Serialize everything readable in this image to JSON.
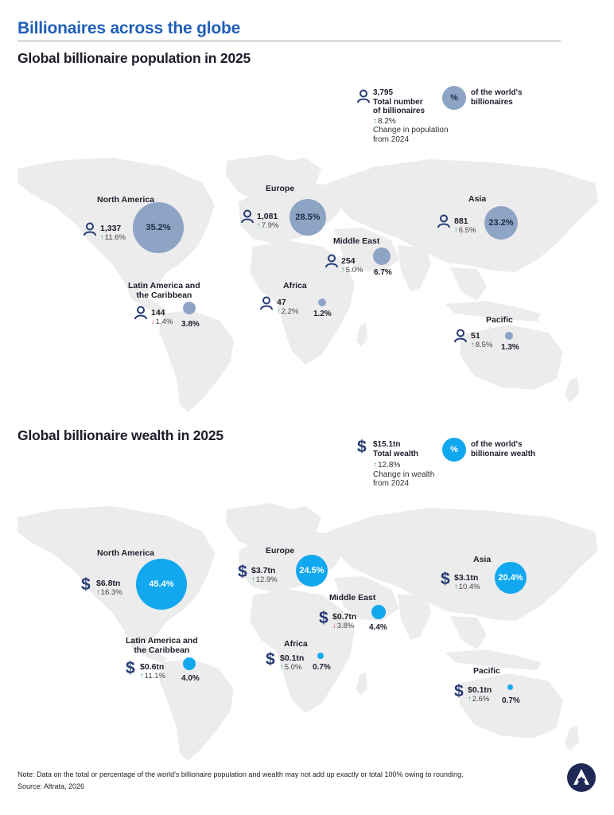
{
  "header": {
    "title": "Billionaires across the globe"
  },
  "population": {
    "title": "Global billionaire population in 2025",
    "legend": {
      "total_value": "3,795",
      "total_label_1": "Total number",
      "total_label_2": "of billionaires",
      "change": "8.2%",
      "change_dir": "up",
      "change_label_1": "Change in population",
      "change_label_2": "from 2024",
      "pct_symbol": "%",
      "pct_label_1": "of the world's",
      "pct_label_2": "billionaires"
    },
    "regions": [
      {
        "name_1": "North America",
        "name_2": "",
        "value": "1,337",
        "change": "11.6%",
        "dir": "up",
        "share": "35.2%"
      },
      {
        "name_1": "Europe",
        "name_2": "",
        "value": "1,081",
        "change": "7.9%",
        "dir": "up",
        "share": "28.5%"
      },
      {
        "name_1": "Asia",
        "name_2": "",
        "value": "881",
        "change": "6.5%",
        "dir": "up",
        "share": "23.2%"
      },
      {
        "name_1": "Middle East",
        "name_2": "",
        "value": "254",
        "change": "5.0%",
        "dir": "up",
        "share": "6.7%"
      },
      {
        "name_1": "Latin America and",
        "name_2": "the Caribbean",
        "value": "144",
        "change": "1.4%",
        "dir": "down",
        "share": "3.8%"
      },
      {
        "name_1": "Africa",
        "name_2": "",
        "value": "47",
        "change": "2.2%",
        "dir": "up",
        "share": "1.2%"
      },
      {
        "name_1": "Pacific",
        "name_2": "",
        "value": "51",
        "change": "8.5%",
        "dir": "up",
        "share": "1.3%"
      }
    ]
  },
  "wealth": {
    "title": "Global billionaire wealth in 2025",
    "legend": {
      "total_value": "$15.1tn",
      "total_label_1": "Total wealth",
      "change": "12.8%",
      "change_dir": "up",
      "change_label_1": "Change in wealth",
      "change_label_2": "from 2024",
      "pct_symbol": "%",
      "pct_label_1": "of the world's",
      "pct_label_2": "billionaire wealth"
    },
    "regions": [
      {
        "name_1": "North America",
        "name_2": "",
        "value": "$6.8tn",
        "change": "16.3%",
        "dir": "up",
        "share": "45.4%"
      },
      {
        "name_1": "Europe",
        "name_2": "",
        "value": "$3.7tn",
        "change": "12.9%",
        "dir": "up",
        "share": "24.5%"
      },
      {
        "name_1": "Asia",
        "name_2": "",
        "value": "$3.1tn",
        "change": "10.4%",
        "dir": "up",
        "share": "20.4%"
      },
      {
        "name_1": "Middle East",
        "name_2": "",
        "value": "$0.7tn",
        "change": "3.8%",
        "dir": "down",
        "share": "4.4%"
      },
      {
        "name_1": "Latin America and",
        "name_2": "the Caribbean",
        "value": "$0.6tn",
        "change": "11.1%",
        "dir": "up",
        "share": "4.0%"
      },
      {
        "name_1": "Africa",
        "name_2": "",
        "value": "$0.1tn",
        "change": "5.0%",
        "dir": "up",
        "share": "0.7%"
      },
      {
        "name_1": "Pacific",
        "name_2": "",
        "value": "$0.1tn",
        "change": "2.6%",
        "dir": "up",
        "share": "0.7%"
      }
    ]
  },
  "footer": {
    "note": "Note: Data on the total or percentage of the world's billionaire population and wealth may not add up exactly or total 100% owing to rounding.",
    "source": "Source: Altrata, 2026"
  },
  "colors": {
    "title_blue": "#1f5fb8",
    "population_bubble": "#8ea4c4",
    "wealth_bubble": "#12a8ef",
    "icon_navy": "#253a75",
    "up_arrow": "#2ea36a",
    "down_arrow": "#d8395a"
  },
  "icons": {
    "population": "person-icon",
    "wealth": "dollar-icon",
    "logo": "altrata-logo-icon"
  }
}
